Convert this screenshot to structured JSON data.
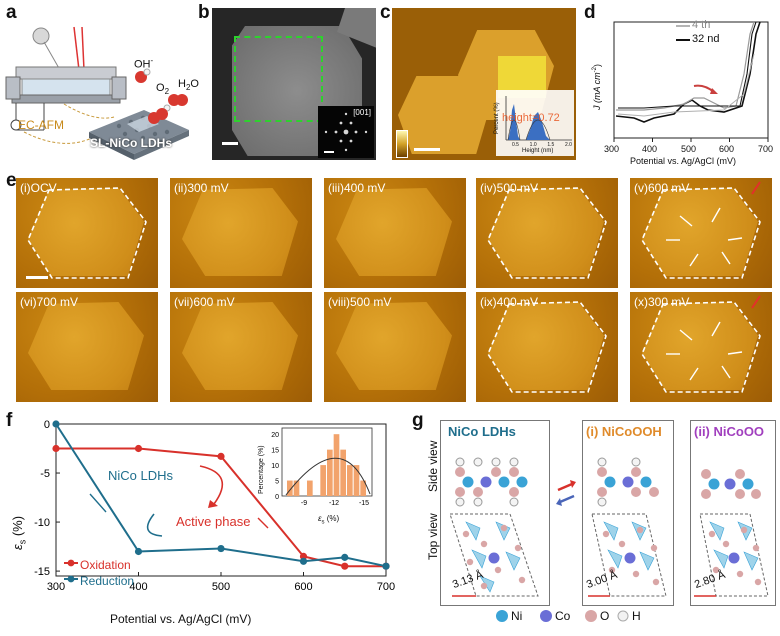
{
  "panels": {
    "a": "a",
    "b": "b",
    "c": "c",
    "d": "d",
    "e": "e",
    "f": "f",
    "g": "g"
  },
  "panel_a": {
    "label_afm": "EC-AFM",
    "label_ldh": "SL-NiCo LDHs",
    "oh": "OH",
    "oh_sup": "-",
    "o2": "O",
    "o2_sub": "2",
    "h2o": "H",
    "h2o_sub": "2",
    "h2o_tail": "O"
  },
  "panel_b": {
    "inset_label": "[001]"
  },
  "panel_c": {
    "hist_ylabel": "Percent (%)",
    "hist_xlabel": "Height (nm)",
    "hist_ticks": [
      "0.5",
      "1.0",
      "1.5",
      "2.0"
    ],
    "overlay": "height=0.72"
  },
  "panel_d": {
    "ylabel": "J (mA cm",
    "ylabel_sup": "-2",
    "ylabel_end": ")",
    "xlabel": "Potential vs. Ag/AgCl (mV)",
    "xticks": [
      "300",
      "400",
      "500",
      "600",
      "700"
    ],
    "legend": [
      "4 th",
      "32 nd"
    ]
  },
  "panel_e": {
    "row1": [
      "(i)OCV",
      "(ii)300 mV",
      "(iii)400 mV",
      "(iv)500 mV",
      "(v)600 mV"
    ],
    "row2": [
      "(vi)700 mV",
      "(vii)600 mV",
      "(viii)500 mV",
      "(ix)400 mV",
      "(x)300 mV"
    ]
  },
  "panel_f": {
    "ylabel": "ε",
    "ylabel_sub": "s",
    "ylabel_unit": "(%)",
    "xlabel": "Potential vs. Ag/AgCl (mV)",
    "label_ldh": "NiCo LDHs",
    "label_active": "Active phase",
    "legend": [
      "Oxidation",
      "Reduction"
    ],
    "inset_ylabel": "Percentage (%)",
    "inset_xlabel": "ε",
    "inset_xlabel_sub": "s",
    "inset_xlabel_unit": "(%)",
    "inset_yticks": [
      "0",
      "5",
      "10",
      "15",
      "20"
    ],
    "inset_xticks": [
      "-9",
      "-12",
      "-15"
    ]
  },
  "panel_g": {
    "titles": [
      "NiCo LDHs",
      "(i) NiCoOOH",
      "(ii) NiCoOO"
    ],
    "side_view": "Side view",
    "top_view": "Top view",
    "distances": [
      "3.13 Å",
      "3.00 Å",
      "2.80 Å"
    ],
    "atoms": [
      {
        "label": "Ni",
        "color": "#3aa3d6"
      },
      {
        "label": "Co",
        "color": "#6a6ed6"
      },
      {
        "label": "O",
        "color": "#d9a6a6"
      },
      {
        "label": "H",
        "color": "#f2f2f2"
      }
    ]
  },
  "chart_data": {
    "type": "line",
    "xlabel": "Potential vs. Ag/AgCl (mV)",
    "ylabel": "εs (%)",
    "xlim": [
      300,
      700
    ],
    "ylim": [
      -15.5,
      0
    ],
    "xticks": [
      300,
      400,
      500,
      600,
      700
    ],
    "yticks": [
      0,
      -5,
      -10,
      -15
    ],
    "series": [
      {
        "name": "Oxidation",
        "color": "#d8312b",
        "x": [
          300,
          400,
          500,
          600,
          650,
          700
        ],
        "y": [
          -2.5,
          -2.5,
          -3.3,
          -13.5,
          -14.5,
          -14.5
        ]
      },
      {
        "name": "Reduction",
        "color": "#1f6e8c",
        "x": [
          300,
          400,
          500,
          600,
          650,
          700
        ],
        "y": [
          0,
          -13,
          -12.7,
          -14,
          -13.6,
          -14.5
        ]
      }
    ],
    "inset": {
      "type": "bar",
      "categories": [
        -8.5,
        -9,
        -9.5,
        -10,
        -10.5,
        -11,
        -11.5,
        -12,
        -12.5,
        -13,
        -13.5,
        -14
      ],
      "values": [
        5,
        5,
        0,
        5,
        0,
        10,
        15,
        20,
        15,
        10,
        10,
        5
      ]
    }
  }
}
